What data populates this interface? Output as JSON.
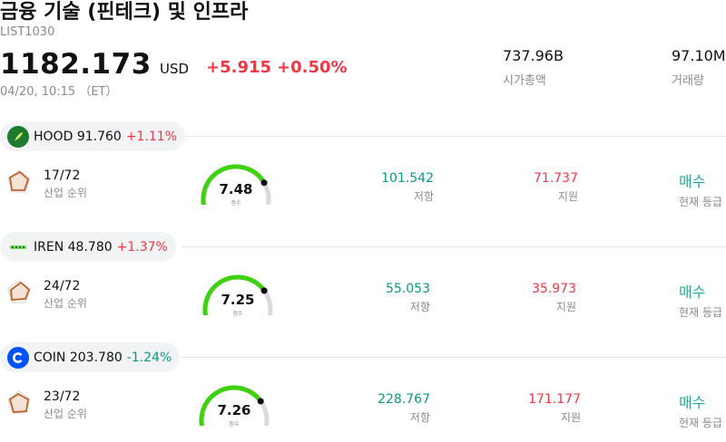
{
  "header": {
    "title": "금융 기술 (핀테크) 및 인프라",
    "code": "LIST1030",
    "price": "1182.173",
    "currency": "USD",
    "change": "+5.915",
    "change_pct": "+0.50%",
    "timestamp": "04/20, 10:15 （ET）"
  },
  "stats": [
    {
      "value": "737.96B",
      "label": "시가총액"
    },
    {
      "value": "97.10M",
      "label": "거래량"
    }
  ],
  "colors": {
    "up": "#f23645",
    "down": "#089981",
    "rating": "#22ab94",
    "gauge_fill": "#3fd10f",
    "gauge_track": "#d9d9e3"
  },
  "stocks": [
    {
      "symbol": "HOOD",
      "price": "91.760",
      "change_pct": "+1.11%",
      "direction": "up",
      "logo_icon": "robinhood-feather-icon",
      "rank": "17/72",
      "rank_label": "산업 순위",
      "score": "7.48",
      "score_level": 0.748,
      "score_label": "점수",
      "resistance": "101.542",
      "resistance_label": "저항",
      "support": "71.737",
      "support_label": "지원",
      "rating": "매수",
      "rating_label": "현재 등급"
    },
    {
      "symbol": "IREN",
      "price": "48.780",
      "change_pct": "+1.37%",
      "direction": "up",
      "logo_icon": "iren-logo-icon",
      "rank": "24/72",
      "rank_label": "산업 순위",
      "score": "7.25",
      "score_level": 0.725,
      "score_label": "점수",
      "resistance": "55.053",
      "resistance_label": "저항",
      "support": "35.973",
      "support_label": "지원",
      "rating": "매수",
      "rating_label": "현재 등급"
    },
    {
      "symbol": "COIN",
      "price": "203.780",
      "change_pct": "-1.24%",
      "direction": "down",
      "logo_icon": "coinbase-c-icon",
      "rank": "23/72",
      "rank_label": "산업 순위",
      "score": "7.26",
      "score_level": 0.726,
      "score_label": "점수",
      "resistance": "228.767",
      "resistance_label": "저항",
      "support": "171.177",
      "support_label": "지원",
      "rating": "매수",
      "rating_label": "현재 등급"
    }
  ]
}
